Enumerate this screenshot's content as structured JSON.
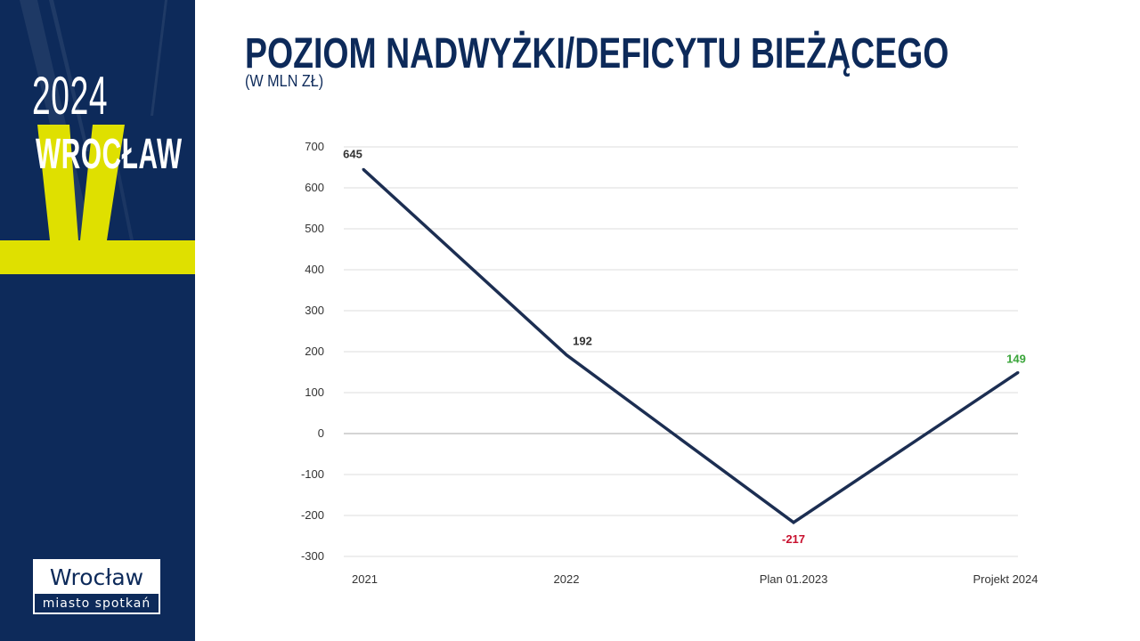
{
  "sidebar": {
    "year": "2024",
    "city": "WROCŁAW",
    "logo": {
      "name": "Wrocław",
      "tagline": "miasto spotkań"
    },
    "colors": {
      "background": "#0d2a5a",
      "accent": "#dfe000"
    }
  },
  "header": {
    "title": "POZIOM NADWYŻKI/DEFICYTU BIEŻĄCEGO",
    "subtitle": "(W MLN ZŁ)"
  },
  "chart_data": {
    "type": "line",
    "categories": [
      "2021",
      "2022",
      "Plan 01.2023",
      "Projekt 2024"
    ],
    "series": [
      {
        "values": [
          645,
          192,
          -217,
          149
        ],
        "color": "#1c2e52"
      }
    ],
    "data_labels": [
      "645",
      "192",
      "-217",
      "149"
    ],
    "data_label_colors": [
      "#333333",
      "#333333",
      "#c8102e",
      "#3aa53a"
    ],
    "ylim": [
      -300,
      700
    ],
    "yticks": [
      -300,
      -200,
      -100,
      0,
      100,
      200,
      300,
      400,
      500,
      600,
      700
    ],
    "grid": true,
    "legend": "none"
  }
}
